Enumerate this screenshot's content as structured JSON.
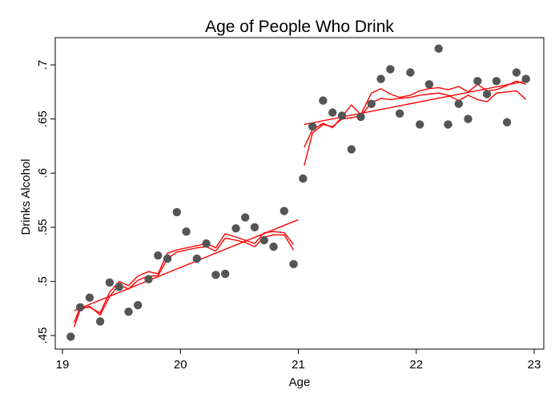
{
  "chart_data": {
    "type": "scatter",
    "title": "Age of People Who Drink",
    "xlabel": "Age",
    "ylabel": "Drinks Alcohol",
    "xlim": [
      19,
      23
    ],
    "ylim": [
      0.44,
      0.72
    ],
    "xticks": [
      {
        "value": 19,
        "label": "19"
      },
      {
        "value": 20,
        "label": "20"
      },
      {
        "value": 21,
        "label": "21"
      },
      {
        "value": 22,
        "label": "22"
      },
      {
        "value": 23,
        "label": "23"
      }
    ],
    "yticks": [
      {
        "value": 0.45,
        "label": ".45"
      },
      {
        "value": 0.5,
        "label": ".5"
      },
      {
        "value": 0.55,
        "label": ".55"
      },
      {
        "value": 0.6,
        "label": ".6"
      },
      {
        "value": 0.65,
        "label": ".65"
      },
      {
        "value": 0.7,
        "label": ".7"
      }
    ],
    "grid": false,
    "legend": "none",
    "colors": {
      "points": "#555555",
      "fit": "#ff0000",
      "axes": "#000000"
    },
    "points": [
      {
        "x": 19.07,
        "y": 0.449
      },
      {
        "x": 19.15,
        "y": 0.476
      },
      {
        "x": 19.23,
        "y": 0.485
      },
      {
        "x": 19.32,
        "y": 0.463
      },
      {
        "x": 19.4,
        "y": 0.499
      },
      {
        "x": 19.48,
        "y": 0.495
      },
      {
        "x": 19.56,
        "y": 0.472
      },
      {
        "x": 19.64,
        "y": 0.478
      },
      {
        "x": 19.73,
        "y": 0.502
      },
      {
        "x": 19.81,
        "y": 0.524
      },
      {
        "x": 19.89,
        "y": 0.521
      },
      {
        "x": 19.97,
        "y": 0.564
      },
      {
        "x": 20.05,
        "y": 0.546
      },
      {
        "x": 20.14,
        "y": 0.521
      },
      {
        "x": 20.22,
        "y": 0.535
      },
      {
        "x": 20.3,
        "y": 0.506
      },
      {
        "x": 20.38,
        "y": 0.507
      },
      {
        "x": 20.47,
        "y": 0.549
      },
      {
        "x": 20.55,
        "y": 0.559
      },
      {
        "x": 20.63,
        "y": 0.55
      },
      {
        "x": 20.71,
        "y": 0.538
      },
      {
        "x": 20.79,
        "y": 0.532
      },
      {
        "x": 20.88,
        "y": 0.565
      },
      {
        "x": 20.96,
        "y": 0.516
      },
      {
        "x": 21.04,
        "y": 0.595
      },
      {
        "x": 21.12,
        "y": 0.643
      },
      {
        "x": 21.21,
        "y": 0.667
      },
      {
        "x": 21.29,
        "y": 0.656
      },
      {
        "x": 21.37,
        "y": 0.653
      },
      {
        "x": 21.45,
        "y": 0.622
      },
      {
        "x": 21.53,
        "y": 0.652
      },
      {
        "x": 21.62,
        "y": 0.664
      },
      {
        "x": 21.7,
        "y": 0.687
      },
      {
        "x": 21.78,
        "y": 0.696
      },
      {
        "x": 21.86,
        "y": 0.655
      },
      {
        "x": 21.95,
        "y": 0.693
      },
      {
        "x": 22.03,
        "y": 0.645
      },
      {
        "x": 22.11,
        "y": 0.682
      },
      {
        "x": 22.19,
        "y": 0.715
      },
      {
        "x": 22.27,
        "y": 0.645
      },
      {
        "x": 22.36,
        "y": 0.664
      },
      {
        "x": 22.44,
        "y": 0.65
      },
      {
        "x": 22.52,
        "y": 0.685
      },
      {
        "x": 22.6,
        "y": 0.673
      },
      {
        "x": 22.68,
        "y": 0.685
      },
      {
        "x": 22.77,
        "y": 0.647
      },
      {
        "x": 22.85,
        "y": 0.693
      },
      {
        "x": 22.93,
        "y": 0.687
      }
    ],
    "fits": [
      {
        "segment": "below-21",
        "points": [
          [
            19.1,
            0.473
          ],
          [
            21.0,
            0.557
          ]
        ]
      },
      {
        "segment": "above-21",
        "points": [
          [
            21.05,
            0.645
          ],
          [
            22.93,
            0.685
          ]
        ]
      },
      {
        "segment": "below-21",
        "points": [
          [
            19.1,
            0.462
          ],
          [
            19.15,
            0.476
          ],
          [
            19.23,
            0.476
          ],
          [
            19.32,
            0.471
          ],
          [
            19.4,
            0.49
          ],
          [
            19.48,
            0.5
          ],
          [
            19.56,
            0.496
          ],
          [
            19.64,
            0.505
          ],
          [
            19.73,
            0.509
          ],
          [
            19.81,
            0.507
          ],
          [
            19.89,
            0.526
          ],
          [
            19.97,
            0.529
          ],
          [
            20.05,
            0.531
          ],
          [
            20.14,
            0.533
          ],
          [
            20.22,
            0.535
          ],
          [
            20.3,
            0.531
          ],
          [
            20.38,
            0.544
          ],
          [
            20.47,
            0.541
          ],
          [
            20.55,
            0.538
          ],
          [
            20.63,
            0.535
          ],
          [
            20.71,
            0.545
          ],
          [
            20.79,
            0.546
          ],
          [
            20.88,
            0.545
          ],
          [
            20.96,
            0.534
          ]
        ]
      },
      {
        "segment": "below-21",
        "points": [
          [
            19.1,
            0.458
          ],
          [
            19.15,
            0.474
          ],
          [
            19.23,
            0.477
          ],
          [
            19.32,
            0.469
          ],
          [
            19.4,
            0.486
          ],
          [
            19.48,
            0.497
          ],
          [
            19.56,
            0.493
          ],
          [
            19.64,
            0.501
          ],
          [
            19.73,
            0.505
          ],
          [
            19.81,
            0.505
          ],
          [
            19.89,
            0.521
          ],
          [
            19.97,
            0.527
          ],
          [
            20.05,
            0.529
          ],
          [
            20.14,
            0.531
          ],
          [
            20.22,
            0.532
          ],
          [
            20.3,
            0.528
          ],
          [
            20.38,
            0.54
          ],
          [
            20.47,
            0.538
          ],
          [
            20.55,
            0.536
          ],
          [
            20.63,
            0.532
          ],
          [
            20.71,
            0.541
          ],
          [
            20.79,
            0.543
          ],
          [
            20.88,
            0.543
          ],
          [
            20.96,
            0.529
          ]
        ]
      },
      {
        "segment": "above-21",
        "points": [
          [
            21.05,
            0.607
          ],
          [
            21.12,
            0.637
          ],
          [
            21.21,
            0.645
          ],
          [
            21.29,
            0.643
          ],
          [
            21.37,
            0.65
          ],
          [
            21.45,
            0.651
          ],
          [
            21.53,
            0.653
          ],
          [
            21.62,
            0.665
          ],
          [
            21.7,
            0.669
          ],
          [
            21.78,
            0.668
          ],
          [
            21.86,
            0.669
          ],
          [
            21.95,
            0.67
          ],
          [
            22.03,
            0.672
          ],
          [
            22.11,
            0.673
          ],
          [
            22.19,
            0.674
          ],
          [
            22.27,
            0.672
          ],
          [
            22.36,
            0.667
          ],
          [
            22.44,
            0.672
          ],
          [
            22.52,
            0.668
          ],
          [
            22.6,
            0.666
          ],
          [
            22.68,
            0.674
          ],
          [
            22.77,
            0.675
          ],
          [
            22.85,
            0.676
          ],
          [
            22.93,
            0.668
          ]
        ]
      },
      {
        "segment": "above-21",
        "points": [
          [
            21.05,
            0.624
          ],
          [
            21.12,
            0.64
          ],
          [
            21.21,
            0.646
          ],
          [
            21.29,
            0.642
          ],
          [
            21.37,
            0.652
          ],
          [
            21.45,
            0.663
          ],
          [
            21.53,
            0.654
          ],
          [
            21.62,
            0.674
          ],
          [
            21.7,
            0.678
          ],
          [
            21.78,
            0.673
          ],
          [
            21.86,
            0.67
          ],
          [
            21.95,
            0.672
          ],
          [
            22.03,
            0.676
          ],
          [
            22.11,
            0.678
          ],
          [
            22.19,
            0.679
          ],
          [
            22.27,
            0.677
          ],
          [
            22.36,
            0.68
          ],
          [
            22.44,
            0.675
          ],
          [
            22.52,
            0.682
          ],
          [
            22.6,
            0.676
          ],
          [
            22.68,
            0.677
          ],
          [
            22.77,
            0.681
          ],
          [
            22.85,
            0.685
          ],
          [
            22.93,
            0.682
          ]
        ]
      }
    ]
  }
}
